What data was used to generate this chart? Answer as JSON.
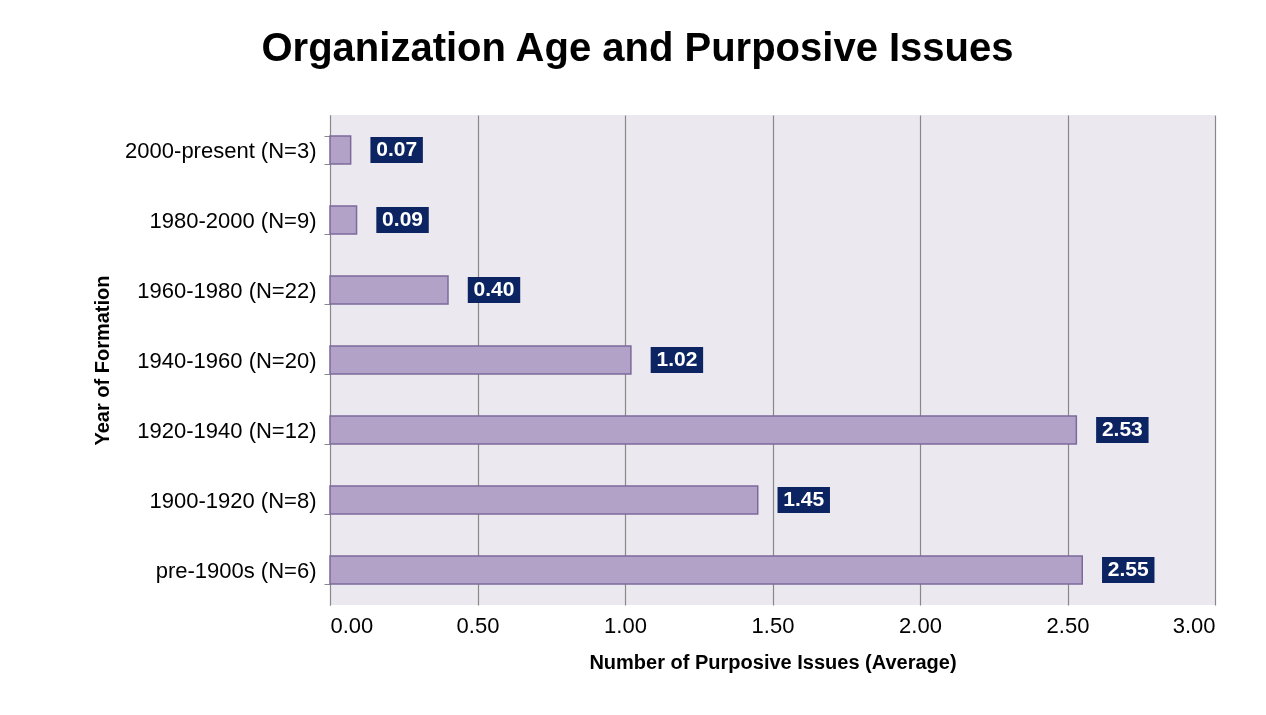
{
  "chart_data": {
    "type": "bar",
    "orientation": "horizontal",
    "title": "Organization Age and Purposive Issues",
    "xlabel": "Number of Purposive Issues (Average)",
    "ylabel": "Year of Formation",
    "categories": [
      "2000-present (N=3)",
      "1980-2000 (N=9)",
      "1960-1980 (N=22)",
      "1940-1960 (N=20)",
      "1920-1940 (N=12)",
      "1900-1920 (N=8)",
      "pre-1900s (N=6)"
    ],
    "values": [
      0.07,
      0.09,
      0.4,
      1.02,
      2.53,
      1.45,
      2.55
    ],
    "value_labels": [
      "0.07",
      "0.09",
      "0.40",
      "1.02",
      "2.53",
      "1.45",
      "2.55"
    ],
    "color": "#b3a2c8",
    "xlim": [
      0,
      3
    ],
    "xticks": [
      {
        "value": 0,
        "label": "0.00"
      },
      {
        "value": 0.5,
        "label": "0.50"
      },
      {
        "value": 1,
        "label": "1.00"
      },
      {
        "value": 1.5,
        "label": "1.50"
      },
      {
        "value": 2,
        "label": "2.00"
      },
      {
        "value": 2.5,
        "label": "2.50"
      },
      {
        "value": 3,
        "label": "3.00"
      }
    ],
    "grid": "x"
  }
}
